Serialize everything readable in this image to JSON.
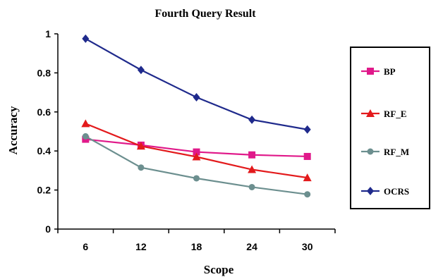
{
  "chart_data": {
    "type": "line",
    "title": "Fourth Query Result",
    "xlabel": "Scope",
    "ylabel": "Accuracy",
    "categories": [
      "6",
      "12",
      "18",
      "24",
      "30"
    ],
    "ylim": [
      0,
      1
    ],
    "yticks": [
      "0",
      "0.2",
      "0.4",
      "0.6",
      "0.8",
      "1"
    ],
    "grid": false,
    "legend_position": "right",
    "series": [
      {
        "name": "BP",
        "values": [
          0.46,
          0.43,
          0.395,
          0.38,
          0.372
        ],
        "color": "#e0198a",
        "marker": "square"
      },
      {
        "name": "RF_E",
        "values": [
          0.54,
          0.425,
          0.37,
          0.305,
          0.263
        ],
        "color": "#e31a1c",
        "marker": "triangle"
      },
      {
        "name": "RF_M",
        "values": [
          0.475,
          0.315,
          0.26,
          0.215,
          0.178
        ],
        "color": "#6c8f8f",
        "marker": "circle"
      },
      {
        "name": "OCRS",
        "values": [
          0.975,
          0.815,
          0.675,
          0.56,
          0.51
        ],
        "color": "#1f2a8c",
        "marker": "diamond"
      }
    ]
  }
}
